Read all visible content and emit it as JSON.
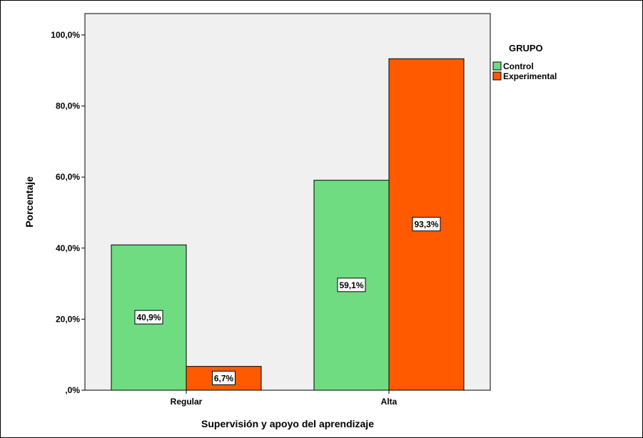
{
  "chart_data": {
    "type": "bar",
    "categories": [
      "Regular",
      "Alta"
    ],
    "series": [
      {
        "name": "Control",
        "values": [
          40.9,
          59.1
        ],
        "labels": [
          "40,9%",
          "59,1%"
        ],
        "color": "#6fdc82"
      },
      {
        "name": "Experimental",
        "values": [
          6.7,
          93.3
        ],
        "labels": [
          "6,7%",
          "93,3%"
        ],
        "color": "#ff5a00"
      }
    ],
    "xlabel": "Supervisión y apoyo del aprendizaje",
    "ylabel": "Porcentaje",
    "ylim": [
      0,
      100
    ],
    "yticks": [
      0,
      20,
      40,
      60,
      80,
      100
    ],
    "ytick_labels": [
      ",0%",
      "20,0%",
      "40,0%",
      "60,0%",
      "80,0%",
      "100,0%"
    ],
    "legend": {
      "title": "GRUPO",
      "placement": "right"
    },
    "plot_background": "#f0f0f0",
    "grid": false
  }
}
